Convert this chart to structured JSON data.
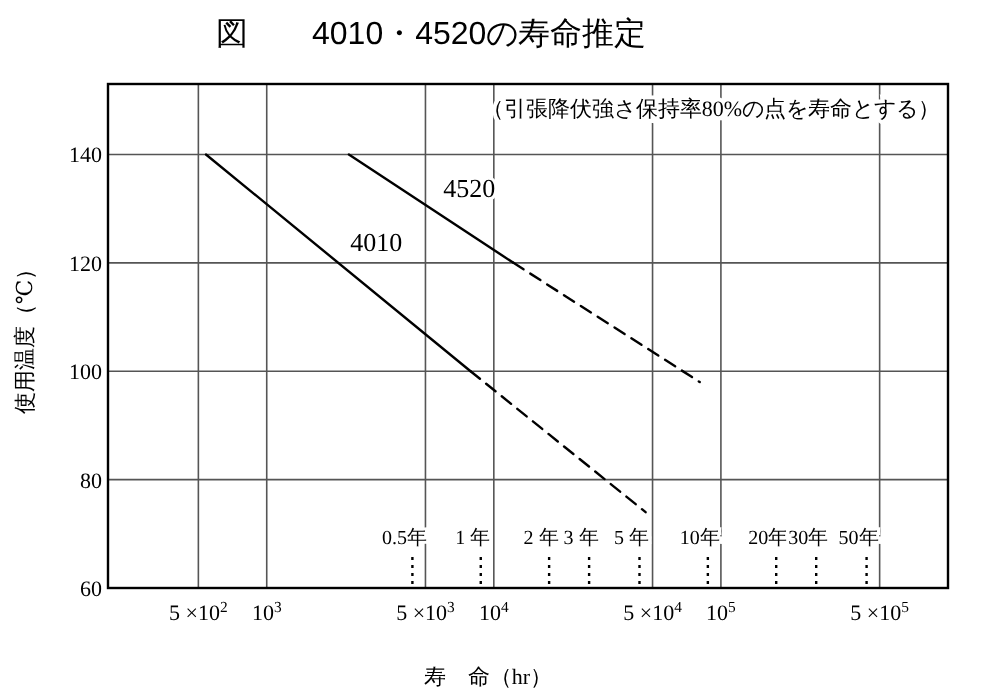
{
  "chart_data": {
    "type": "line",
    "title": "図　　4010・4520の寿命推定",
    "xlabel": "寿　命（hr）",
    "ylabel": "使用温度（℃）",
    "annotations": [
      "（引張降伏強さ保持率80%の点を寿命とする）"
    ],
    "log": "x",
    "grid": true,
    "marker": "none",
    "xlim": [
      200,
      1000000
    ],
    "ylim": [
      60,
      153
    ],
    "xticks": [
      {
        "value": 500,
        "label": "5 ×10$^{2}$"
      },
      {
        "value": 1000,
        "label": "10$^{3}$"
      },
      {
        "value": 5000,
        "label": "5 ×10$^{3}$"
      },
      {
        "value": 10000,
        "label": "10$^{4}$"
      },
      {
        "value": 50000,
        "label": "5 ×10$^{4}$"
      },
      {
        "value": 100000,
        "label": "10$^{5}$"
      },
      {
        "value": 500000,
        "label": "5 ×10$^{5}$"
      }
    ],
    "yticks": [
      60,
      80,
      100,
      120,
      140
    ],
    "series": [
      {
        "name": "4010",
        "color": "#000000",
        "line_style": "solid",
        "x": [
          540,
          7900
        ],
        "values": [
          140,
          100
        ]
      },
      {
        "color": "#000000",
        "line_style": "dashed",
        "x": [
          7900,
          46600
        ],
        "values": [
          100,
          74
        ]
      },
      {
        "name": "4520",
        "color": "#000000",
        "line_style": "solid",
        "x": [
          2300,
          12200
        ],
        "values": [
          140,
          120
        ]
      },
      {
        "color": "#000000",
        "line_style": "dashed",
        "x": [
          12200,
          80700
        ],
        "values": [
          120,
          98
        ]
      }
    ],
    "ref_lines": [
      {
        "axis": "x",
        "value": 4380,
        "label": "0.5年",
        "line_style": "dotted"
      },
      {
        "axis": "x",
        "value": 8760,
        "label": "1 年",
        "line_style": "dotted"
      },
      {
        "axis": "x",
        "value": 17520,
        "label": "2 年",
        "line_style": "dotted"
      },
      {
        "axis": "x",
        "value": 26280,
        "label": "3 年",
        "line_style": "dotted"
      },
      {
        "axis": "x",
        "value": 43800,
        "label": "5 年",
        "line_style": "dotted"
      },
      {
        "axis": "x",
        "value": 87600,
        "label": "10年",
        "line_style": "dotted"
      },
      {
        "axis": "x",
        "value": 175200,
        "label": "20年",
        "line_style": "dotted"
      },
      {
        "axis": "x",
        "value": 262800,
        "label": "30年",
        "line_style": "dotted"
      },
      {
        "axis": "x",
        "value": 438000,
        "label": "50年",
        "line_style": "dotted"
      }
    ]
  }
}
